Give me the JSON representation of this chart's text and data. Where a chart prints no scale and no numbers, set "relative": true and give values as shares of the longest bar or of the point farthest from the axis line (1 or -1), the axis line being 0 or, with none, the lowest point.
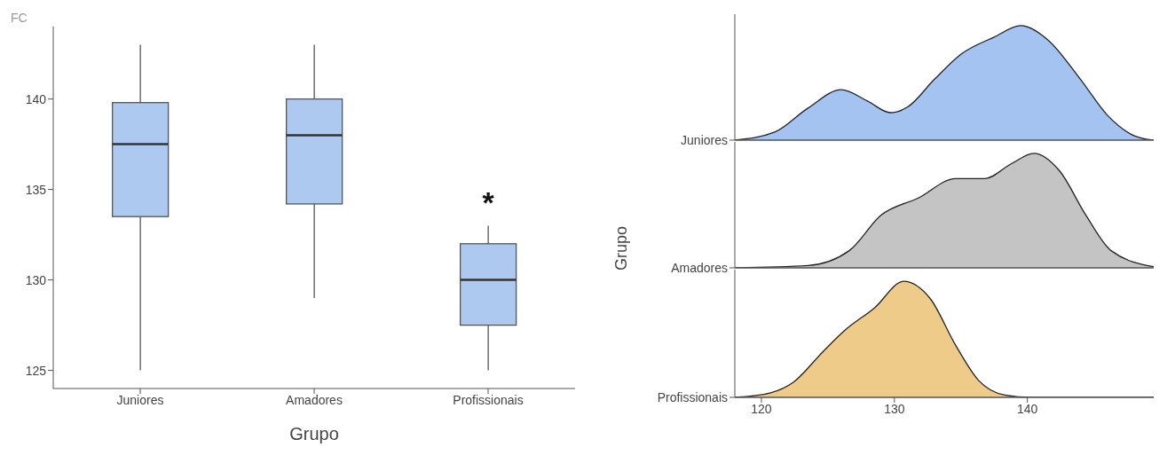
{
  "chart_data": [
    {
      "type": "box",
      "ylabel": "FC",
      "xlabel": "Grupo",
      "categories": [
        "Juniores",
        "Amadores",
        "Profissionais"
      ],
      "color": "#aec9f0",
      "boxes": [
        {
          "low": 125,
          "q1": 133.5,
          "median": 137.5,
          "q3": 139.8,
          "high": 143
        },
        {
          "low": 129,
          "q1": 134.2,
          "median": 138,
          "q3": 140,
          "high": 143
        },
        {
          "low": 125,
          "q1": 127.5,
          "median": 130,
          "q3": 132,
          "high": 133
        }
      ],
      "ylim": [
        124,
        144
      ],
      "yticks": [
        125,
        130,
        135,
        140
      ],
      "grid": false,
      "legend": false,
      "annotations": [
        "*"
      ]
    },
    {
      "type": "area",
      "relative": true,
      "xlim": [
        118,
        149.5
      ],
      "xticks": [
        120,
        130,
        140
      ],
      "tick_labels": "y",
      "grid": false,
      "legend": false,
      "series": [
        {
          "name": "Juniores",
          "color": "#a4c3f0",
          "x": [
            118,
            121,
            123.5,
            126,
            128,
            129.7,
            131,
            133,
            135,
            137.5,
            139.5,
            141.5,
            144,
            146,
            148,
            149.5
          ],
          "values": [
            0,
            0.07,
            0.28,
            0.44,
            0.34,
            0.24,
            0.29,
            0.53,
            0.75,
            0.9,
            1,
            0.88,
            0.53,
            0.22,
            0.04,
            0
          ]
        }
      ]
    },
    {
      "type": "area",
      "relative": true,
      "ylabel": "Grupo",
      "xlim": [
        118,
        149.5
      ],
      "xticks": [
        120,
        130,
        140
      ],
      "tick_labels": "y",
      "grid": false,
      "legend": false,
      "series": [
        {
          "name": "Amadores",
          "color": "#c4c4c4",
          "x": [
            118,
            123.5,
            126.6,
            129,
            131.8,
            134.6,
            136.8,
            138.8,
            140.5,
            142.4,
            144.4,
            146.3,
            149.5
          ],
          "values": [
            0,
            0.02,
            0.15,
            0.46,
            0.61,
            0.78,
            0.78,
            0.91,
            1,
            0.85,
            0.46,
            0.15,
            0.01
          ]
        }
      ]
    },
    {
      "type": "area",
      "relative": true,
      "xlim": [
        118,
        149.5
      ],
      "xticks": [
        120,
        130,
        140
      ],
      "grid": false,
      "legend": false,
      "series": [
        {
          "name": "Profissionais",
          "color": "#efcb8a",
          "x": [
            118,
            120.7,
            122.4,
            124.6,
            126.3,
            128.5,
            130.7,
            132.7,
            134.6,
            136.3,
            138.3,
            140.3,
            149.5
          ],
          "values": [
            0,
            0.04,
            0.13,
            0.39,
            0.58,
            0.77,
            1,
            0.85,
            0.45,
            0.15,
            0.02,
            0,
            0
          ]
        }
      ]
    }
  ]
}
